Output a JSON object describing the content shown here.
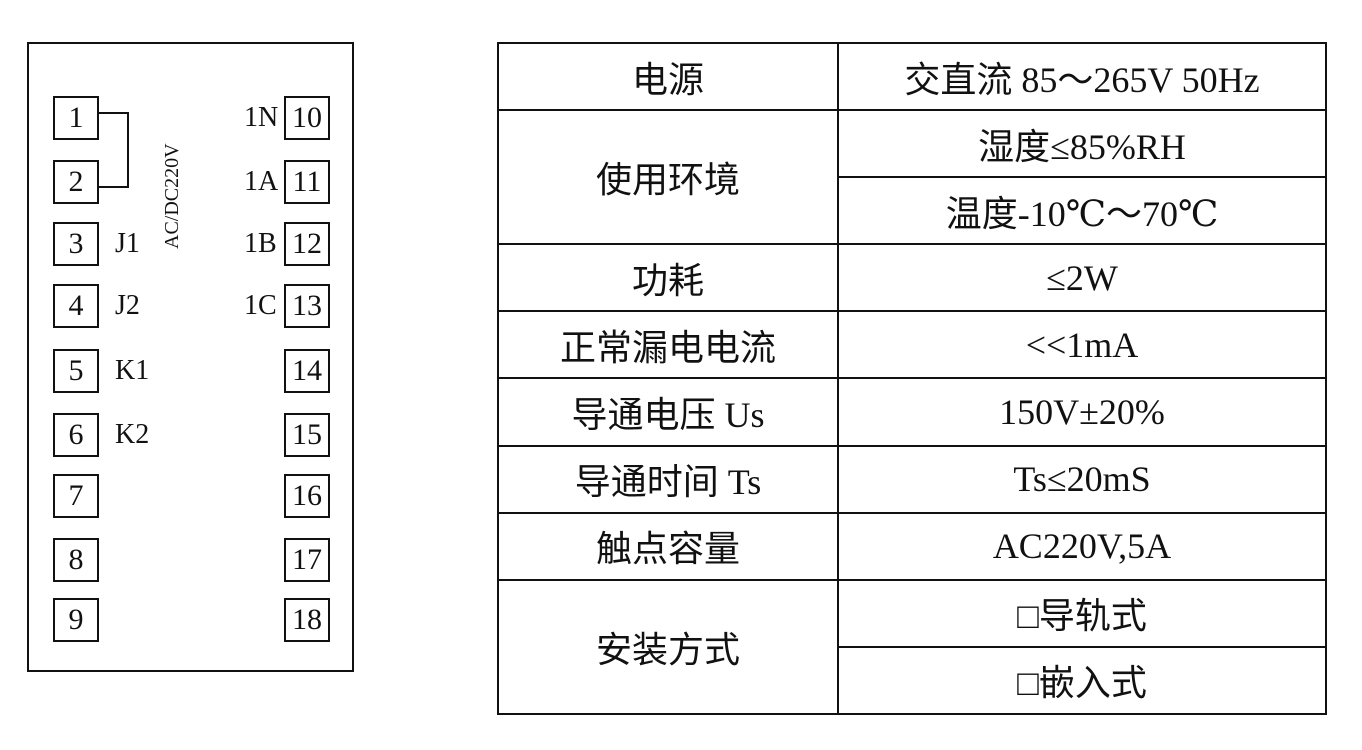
{
  "terminal_panel": {
    "supply_label": "AC/DC220V",
    "left_terminals": [
      {
        "num": "1",
        "label": ""
      },
      {
        "num": "2",
        "label": ""
      },
      {
        "num": "3",
        "label": "J1"
      },
      {
        "num": "4",
        "label": "J2"
      },
      {
        "num": "5",
        "label": "K1"
      },
      {
        "num": "6",
        "label": "K2"
      },
      {
        "num": "7",
        "label": ""
      },
      {
        "num": "8",
        "label": ""
      },
      {
        "num": "9",
        "label": ""
      }
    ],
    "right_terminals": [
      {
        "num": "10",
        "label": "1N"
      },
      {
        "num": "11",
        "label": "1A"
      },
      {
        "num": "12",
        "label": "1B"
      },
      {
        "num": "13",
        "label": "1C"
      },
      {
        "num": "14",
        "label": ""
      },
      {
        "num": "15",
        "label": ""
      },
      {
        "num": "16",
        "label": ""
      },
      {
        "num": "17",
        "label": ""
      },
      {
        "num": "18",
        "label": ""
      }
    ]
  },
  "spec_table": {
    "rows": [
      {
        "key": "电源",
        "values": [
          "交直流 85～265V  50Hz"
        ]
      },
      {
        "key": "使用环境",
        "values": [
          "湿度≤85%RH",
          "温度-10℃～70℃"
        ]
      },
      {
        "key": "功耗",
        "values": [
          "≤2W"
        ]
      },
      {
        "key": "正常漏电电流",
        "values": [
          "<<1mA"
        ]
      },
      {
        "key": "导通电压 Us",
        "values": [
          "150V±20%"
        ]
      },
      {
        "key": "导通时间 Ts",
        "values": [
          "Ts≤20mS"
        ]
      },
      {
        "key": "触点容量",
        "values": [
          "AC220V,5A"
        ]
      },
      {
        "key": "安装方式",
        "values": [
          "□导轨式",
          "□嵌入式"
        ]
      }
    ]
  }
}
